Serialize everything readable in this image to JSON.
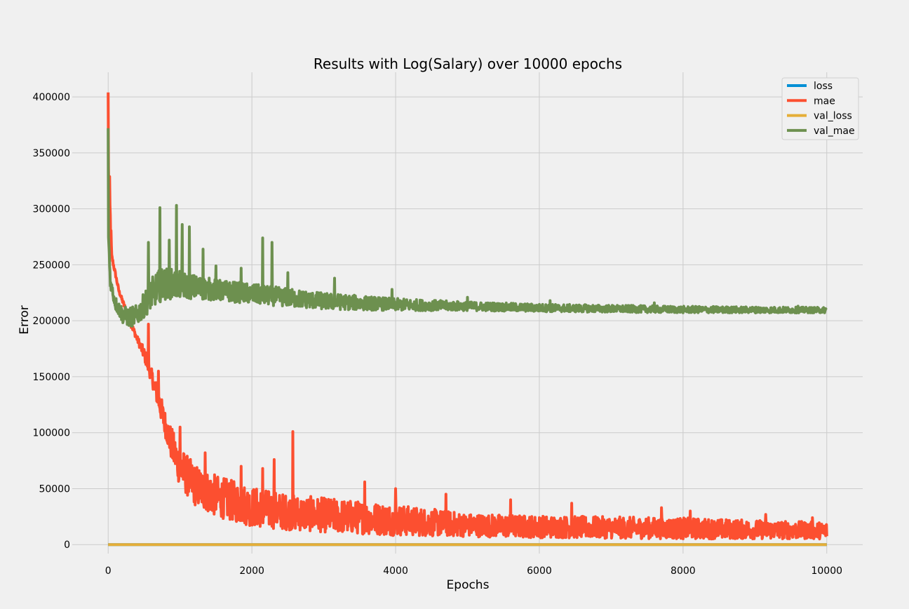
{
  "chart_data": {
    "type": "line",
    "title": "Results with Log(Salary) over 10000 epochs",
    "xlabel": "Epochs",
    "ylabel": "Error",
    "xlim": [
      -500,
      10500
    ],
    "ylim": [
      -8000,
      422000
    ],
    "xticks": [
      0,
      2000,
      4000,
      6000,
      8000,
      10000
    ],
    "xtick_labels": [
      "0",
      "2000",
      "4000",
      "6000",
      "8000",
      "10000"
    ],
    "yticks": [
      0,
      50000,
      100000,
      150000,
      200000,
      250000,
      300000,
      350000,
      400000
    ],
    "ytick_labels": [
      "0",
      "50000",
      "100000",
      "150000",
      "200000",
      "250000",
      "300000",
      "350000",
      "400000"
    ],
    "grid": true,
    "legend_position": "top-right",
    "series": [
      {
        "name": "loss",
        "color": "#008fd5",
        "low": [
          [
            0,
            0
          ],
          [
            10000,
            0
          ]
        ],
        "high": [
          [
            0,
            0
          ],
          [
            10000,
            0
          ]
        ],
        "spikes": []
      },
      {
        "name": "mae",
        "color": "#fc4f30",
        "low": [
          [
            0,
            300000
          ],
          [
            50,
            255000
          ],
          [
            150,
            225000
          ],
          [
            300,
            197000
          ],
          [
            400,
            182000
          ],
          [
            500,
            165000
          ],
          [
            600,
            145000
          ],
          [
            700,
            120000
          ],
          [
            800,
            95000
          ],
          [
            900,
            70000
          ],
          [
            1000,
            52000
          ],
          [
            1200,
            35000
          ],
          [
            1500,
            25000
          ],
          [
            2000,
            16000
          ],
          [
            2500,
            13000
          ],
          [
            3000,
            11000
          ],
          [
            4000,
            8000
          ],
          [
            5000,
            7000
          ],
          [
            6000,
            6000
          ],
          [
            8000,
            5000
          ],
          [
            10000,
            5000
          ]
        ],
        "high": [
          [
            0,
            375000
          ],
          [
            50,
            260000
          ],
          [
            150,
            228000
          ],
          [
            300,
            203000
          ],
          [
            400,
            187000
          ],
          [
            500,
            176000
          ],
          [
            600,
            158000
          ],
          [
            700,
            140000
          ],
          [
            800,
            118000
          ],
          [
            900,
            102000
          ],
          [
            1000,
            88000
          ],
          [
            1200,
            72000
          ],
          [
            1500,
            62000
          ],
          [
            2000,
            52000
          ],
          [
            2500,
            45000
          ],
          [
            3000,
            42000
          ],
          [
            4000,
            36000
          ],
          [
            5000,
            28000
          ],
          [
            6000,
            26000
          ],
          [
            8000,
            24000
          ],
          [
            10000,
            20000
          ]
        ],
        "spikes": [
          [
            0,
            404000
          ],
          [
            560,
            197000
          ],
          [
            700,
            155000
          ],
          [
            1000,
            105000
          ],
          [
            1350,
            82000
          ],
          [
            1850,
            70000
          ],
          [
            2150,
            68000
          ],
          [
            2310,
            76000
          ],
          [
            2570,
            101000
          ],
          [
            3570,
            56000
          ],
          [
            4000,
            50000
          ],
          [
            4700,
            45000
          ],
          [
            5600,
            40000
          ],
          [
            6450,
            37000
          ],
          [
            7700,
            33000
          ],
          [
            8100,
            30000
          ],
          [
            9150,
            27000
          ],
          [
            9800,
            24000
          ]
        ]
      },
      {
        "name": "val_loss",
        "color": "#e5ae38",
        "low": [
          [
            0,
            0
          ],
          [
            10000,
            0
          ]
        ],
        "high": [
          [
            0,
            0
          ],
          [
            10000,
            0
          ]
        ],
        "spikes": []
      },
      {
        "name": "val_mae",
        "color": "#6d904f",
        "low": [
          [
            0,
            275000
          ],
          [
            30,
            230000
          ],
          [
            100,
            210000
          ],
          [
            200,
            198000
          ],
          [
            300,
            194000
          ],
          [
            400,
            196000
          ],
          [
            500,
            203000
          ],
          [
            600,
            210000
          ],
          [
            700,
            216000
          ],
          [
            800,
            219000
          ],
          [
            1000,
            220000
          ],
          [
            1500,
            218000
          ],
          [
            2000,
            215000
          ],
          [
            3000,
            210000
          ],
          [
            4000,
            209000
          ],
          [
            5000,
            209000
          ],
          [
            6000,
            208000
          ],
          [
            8000,
            207000
          ],
          [
            10000,
            207000
          ]
        ],
        "high": [
          [
            0,
            290000
          ],
          [
            30,
            240000
          ],
          [
            100,
            222000
          ],
          [
            200,
            213000
          ],
          [
            300,
            212000
          ],
          [
            400,
            214000
          ],
          [
            500,
            225000
          ],
          [
            600,
            238000
          ],
          [
            700,
            245000
          ],
          [
            800,
            248000
          ],
          [
            1000,
            244000
          ],
          [
            1500,
            237000
          ],
          [
            2000,
            233000
          ],
          [
            3000,
            225000
          ],
          [
            4000,
            220000
          ],
          [
            5000,
            217000
          ],
          [
            6000,
            215000
          ],
          [
            8000,
            213000
          ],
          [
            10000,
            212000
          ]
        ],
        "spikes": [
          [
            0,
            372000
          ],
          [
            560,
            270000
          ],
          [
            720,
            301000
          ],
          [
            850,
            272000
          ],
          [
            950,
            303000
          ],
          [
            1030,
            286000
          ],
          [
            1130,
            284000
          ],
          [
            1320,
            264000
          ],
          [
            1500,
            249000
          ],
          [
            1850,
            247000
          ],
          [
            2150,
            274000
          ],
          [
            2280,
            270000
          ],
          [
            2500,
            243000
          ],
          [
            3150,
            238000
          ],
          [
            3950,
            228000
          ],
          [
            5000,
            221000
          ],
          [
            6150,
            218000
          ],
          [
            7600,
            216000
          ],
          [
            9600,
            213000
          ]
        ]
      }
    ]
  }
}
